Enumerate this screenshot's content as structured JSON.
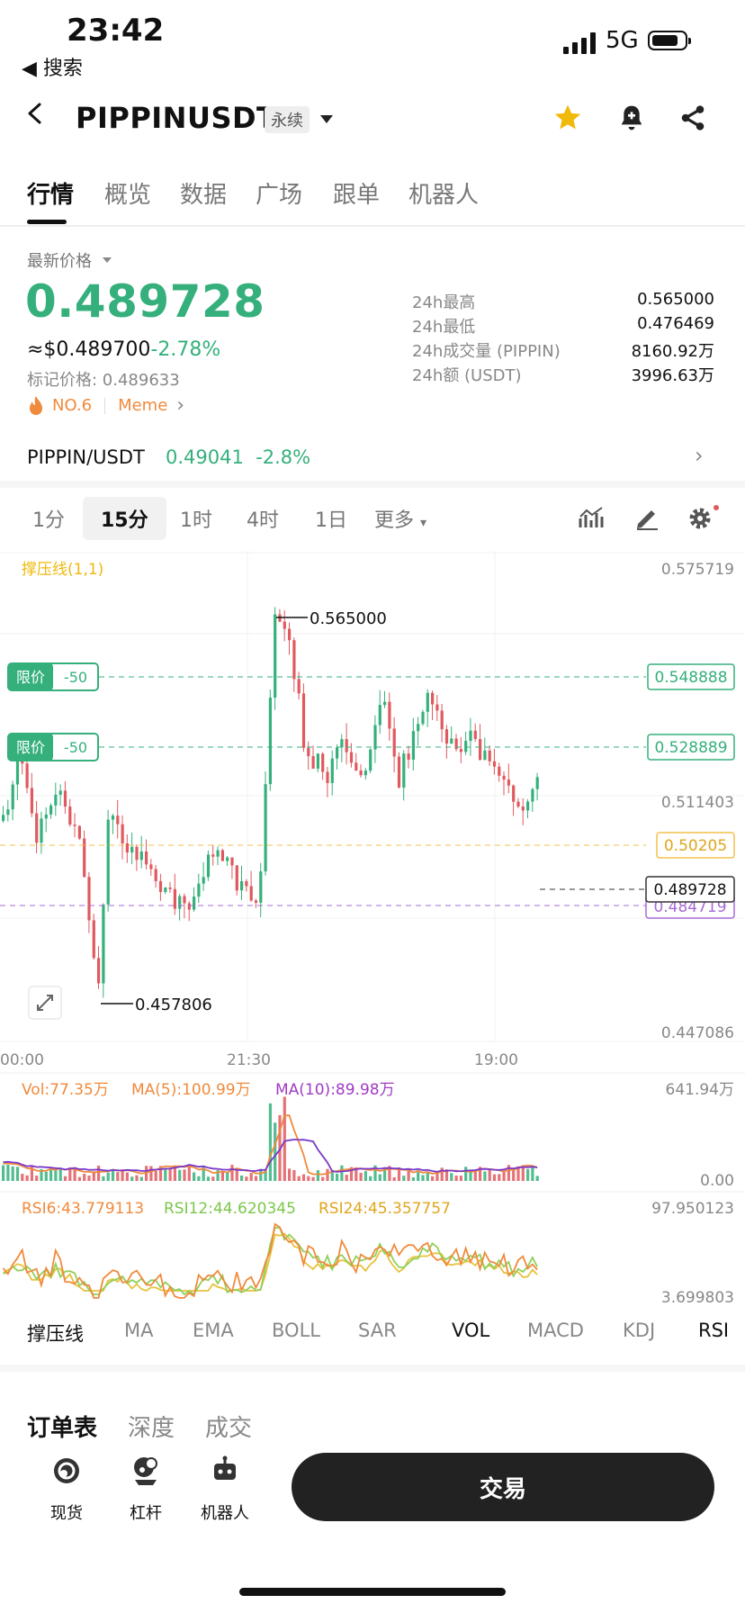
{
  "status_bar": {
    "time": "23:42",
    "back_app": "◀ 搜索",
    "network": "5G"
  },
  "header": {
    "pair": "PIPPINUSDT",
    "contract_type": "永续"
  },
  "tabs": [
    {
      "label": "行情",
      "active": true
    },
    {
      "label": "概览",
      "active": false
    },
    {
      "label": "数据",
      "active": false
    },
    {
      "label": "广场",
      "active": false
    },
    {
      "label": "跟单",
      "active": false
    },
    {
      "label": "机器人",
      "active": false
    }
  ],
  "price_panel": {
    "latest_label": "最新价格",
    "last_price": "0.489728",
    "usd_price": "≈$0.489700",
    "change_pct": "-2.78%",
    "mark_price": "标记价格: 0.489633",
    "rank": "NO.6",
    "category": "Meme"
  },
  "stats": [
    {
      "label": "24h最高",
      "value": "0.565000"
    },
    {
      "label": "24h最低",
      "value": "0.476469"
    },
    {
      "label": "24h成交量 (PIPPIN)",
      "value": "8160.92万"
    },
    {
      "label": "24h额 (USDT)",
      "value": "3996.63万"
    }
  ],
  "spot": {
    "pair": "PIPPIN/USDT",
    "price_change": "0.49041  -2.8%"
  },
  "timeframes": [
    {
      "label": "1分",
      "active": false
    },
    {
      "label": "15分",
      "active": true
    },
    {
      "label": "1时",
      "active": false
    },
    {
      "label": "4时",
      "active": false
    },
    {
      "label": "1日",
      "active": false
    },
    {
      "label": "更多",
      "active": false
    }
  ],
  "chart": {
    "indicator_label": "撑压线(1,1)",
    "axis_max": "0.575719",
    "axis_mid": "0.511403",
    "axis_min": "0.447086",
    "high_marker": "0.565000",
    "low_marker": "0.457806",
    "limit_order_label": "限价",
    "limit_order_qty": "-50",
    "limit_1": "0.548888",
    "limit_2": "0.528889",
    "resistance": "0.50205",
    "current": "0.489728",
    "support": "0.484719",
    "x_labels": [
      "00:00",
      "21:30",
      "19:00"
    ]
  },
  "volume": {
    "vol": "Vol:77.35万",
    "ma5": "MA(5):100.99万",
    "ma10": "MA(10):89.98万",
    "max": "641.94万",
    "min": "0.00"
  },
  "rsi": {
    "rsi6": "RSI6:43.779113",
    "rsi12": "RSI12:44.620345",
    "rsi24": "RSI24:45.357757",
    "max": "97.950123",
    "min": "3.699803"
  },
  "indicator_tabs": [
    {
      "label": "撑压线",
      "on": true
    },
    {
      "label": "MA",
      "on": false
    },
    {
      "label": "EMA",
      "on": false
    },
    {
      "label": "BOLL",
      "on": false
    },
    {
      "label": "SAR",
      "on": false
    },
    {
      "label": "VOL",
      "on": true
    },
    {
      "label": "MACD",
      "on": false
    },
    {
      "label": "KDJ",
      "on": false
    },
    {
      "label": "RSI",
      "on": true
    }
  ],
  "order_tabs": [
    {
      "label": "订单表",
      "on": true
    },
    {
      "label": "深度",
      "on": false
    },
    {
      "label": "成交",
      "on": false
    }
  ],
  "bottom": {
    "spot": "现货",
    "margin": "杠杆",
    "bot": "机器人",
    "trade": "交易"
  },
  "colors": {
    "up": "#35b07c",
    "down": "#e0595e",
    "accent": "#f0b90b"
  }
}
